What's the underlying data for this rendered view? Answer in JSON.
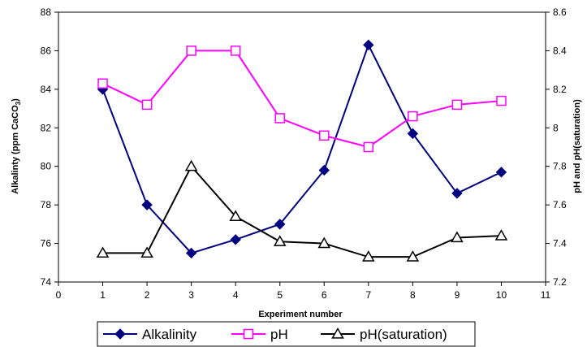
{
  "chart_data": {
    "type": "line",
    "title": "",
    "xlabel": "Experiment number",
    "ylabel": "Alkalinty (ppm CaCO",
    "ylabel_sub": "3",
    "ylabel_close": ")",
    "y2label": "pH and pH(saturation)",
    "xlim": [
      0,
      11
    ],
    "ylim": [
      74,
      88
    ],
    "y2lim": [
      7.2,
      8.6
    ],
    "xticks": [
      "0",
      "1",
      "2",
      "3",
      "4",
      "5",
      "6",
      "7",
      "8",
      "9",
      "10",
      "11"
    ],
    "yticks": [
      "74",
      "76",
      "78",
      "80",
      "82",
      "84",
      "86",
      "88"
    ],
    "y2ticks": [
      "7.2",
      "7.4",
      "7.6",
      "7.8",
      "8",
      "8.2",
      "8.4",
      "8.6"
    ],
    "grid": false,
    "legend_position": "bottom",
    "x": [
      1,
      2,
      3,
      4,
      5,
      6,
      7,
      8,
      9,
      10
    ],
    "series": [
      {
        "name": "Alkalinity",
        "axis": "left",
        "marker": "diamond",
        "color": "#000080",
        "values": [
          84.0,
          78.0,
          75.5,
          76.2,
          77.0,
          79.8,
          86.3,
          81.7,
          78.6,
          79.7
        ]
      },
      {
        "name": "pH",
        "axis": "right",
        "marker": "square-open",
        "color": "#ff00ff",
        "values": [
          8.23,
          8.12,
          8.4,
          8.4,
          8.05,
          7.96,
          7.9,
          8.06,
          8.12,
          8.14
        ]
      },
      {
        "name": "pH(saturation)",
        "axis": "right",
        "marker": "triangle-open",
        "color": "#000000",
        "values": [
          7.35,
          7.35,
          7.8,
          7.54,
          7.41,
          7.4,
          7.33,
          7.33,
          7.43,
          7.44
        ]
      }
    ]
  }
}
